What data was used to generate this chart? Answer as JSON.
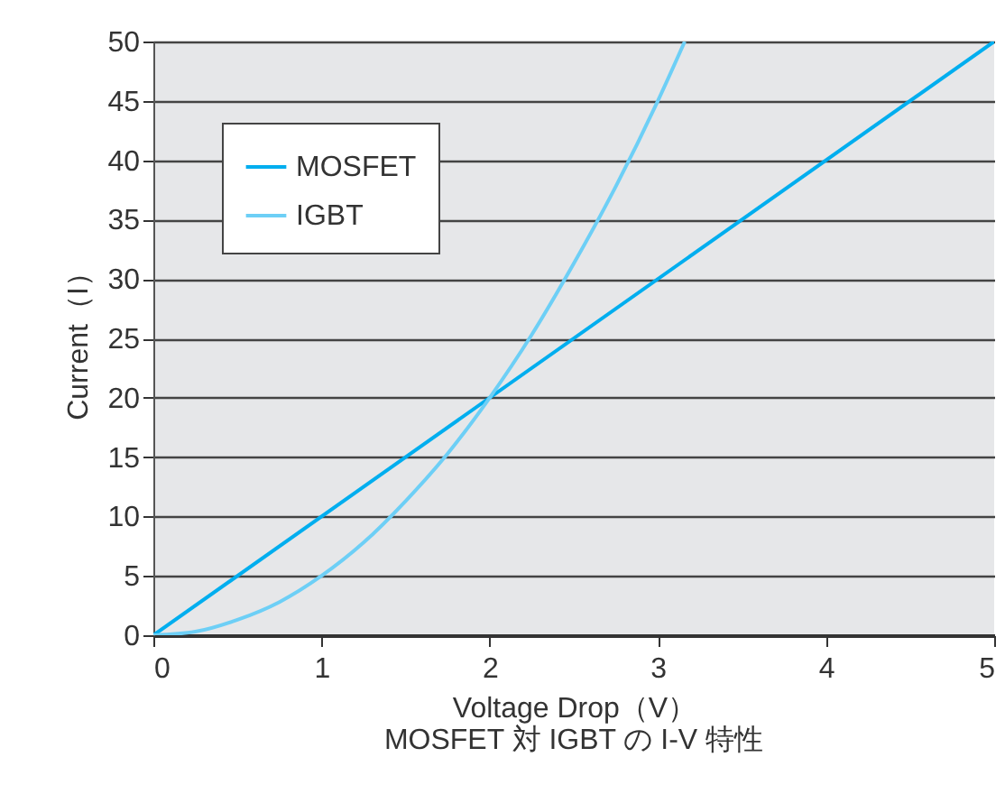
{
  "chart_data": {
    "type": "line",
    "title": "MOSFET 対 IGBT の I-V 特性",
    "xlabel": "Voltage Drop（V）",
    "ylabel": "Current（I）",
    "xlim": [
      0,
      5
    ],
    "xticks": [
      0,
      1,
      2,
      3,
      4,
      5
    ],
    "ylim": [
      0,
      50
    ],
    "yticks": [
      0,
      5,
      10,
      15,
      20,
      25,
      30,
      35,
      40,
      45,
      50
    ],
    "grid": "y",
    "legend": "top left",
    "marker": "none",
    "line_style": "solid",
    "series": [
      {
        "name": "MOSFET",
        "color": "#00aeef",
        "x": [
          0,
          5
        ],
        "values": [
          0,
          50
        ]
      },
      {
        "name": "IGBT",
        "color": "#6dcff6",
        "x": [
          0,
          0.25,
          0.5,
          0.75,
          1,
          1.25,
          1.5,
          1.75,
          2,
          2.25,
          2.5,
          2.75,
          3,
          3.16
        ],
        "values": [
          0,
          0.3,
          1.3,
          2.8,
          5,
          7.8,
          11.3,
          15.3,
          20,
          25.3,
          31.3,
          37.8,
          45,
          50
        ]
      }
    ]
  }
}
